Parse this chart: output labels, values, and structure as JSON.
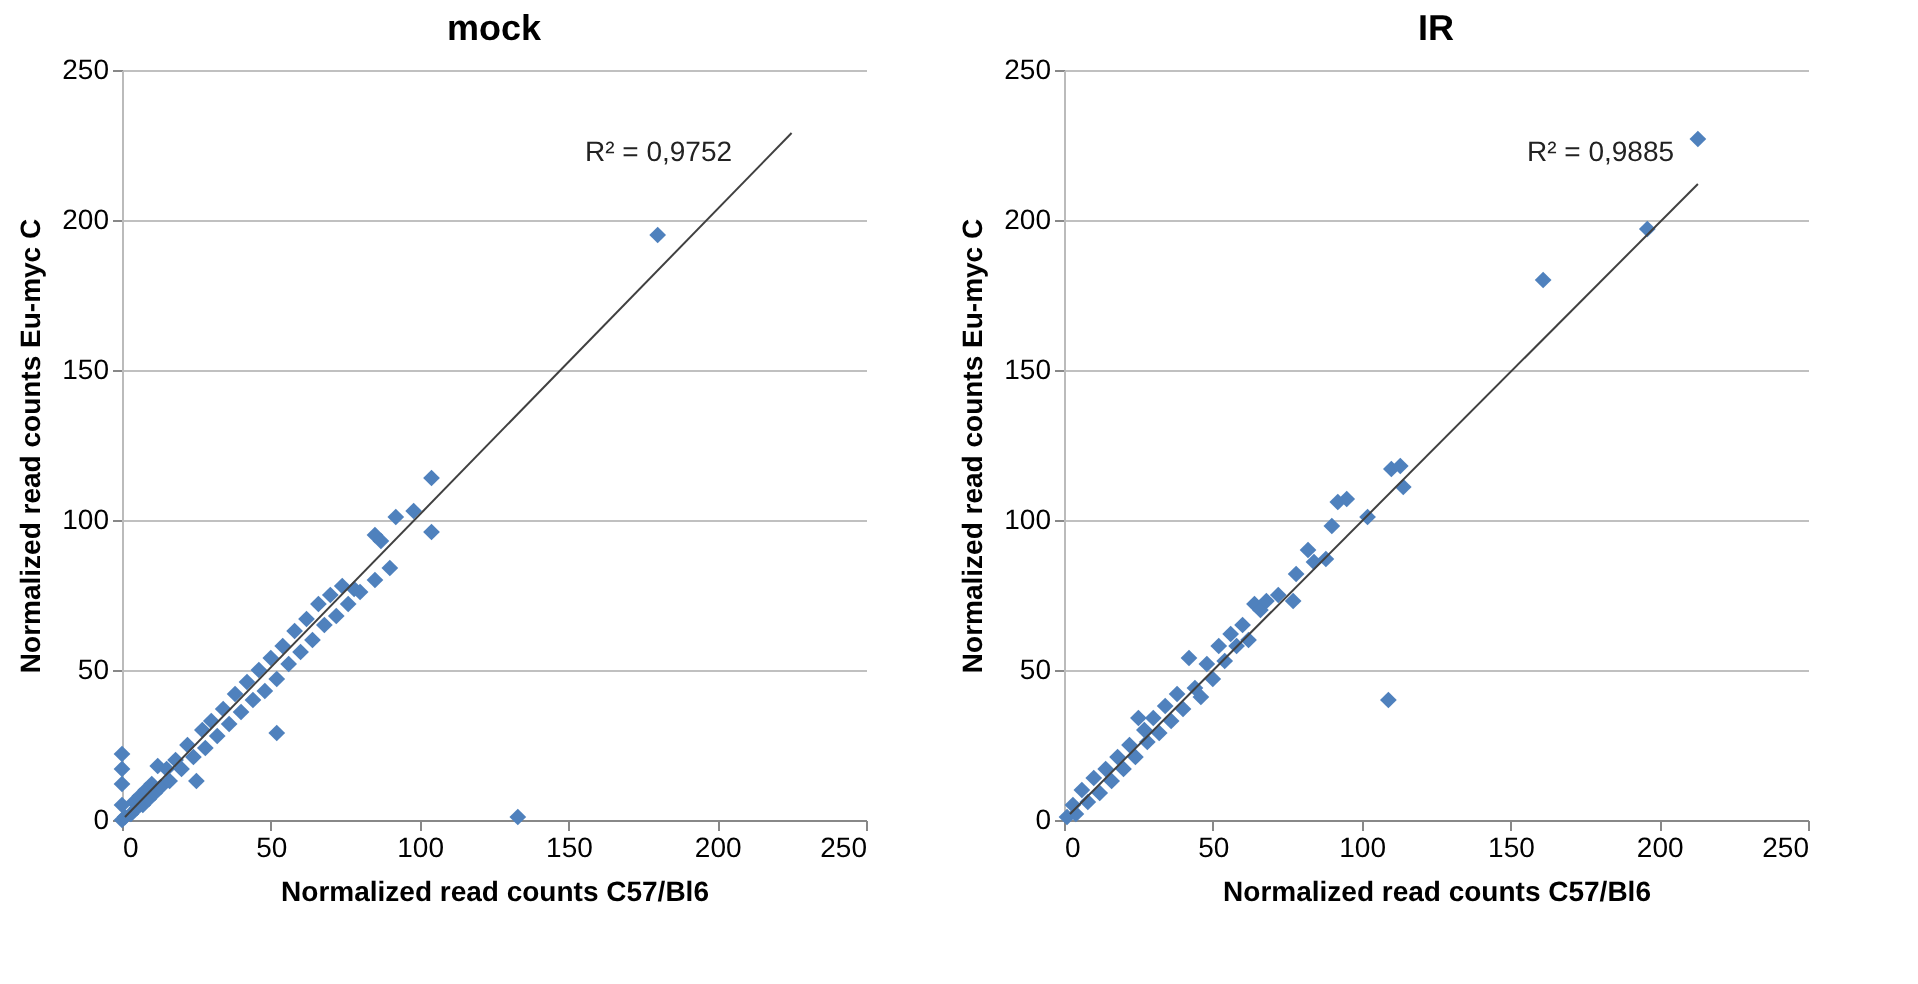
{
  "chart_data": [
    {
      "type": "scatter",
      "title": "mock",
      "xlabel": "Normalized read counts C57/Bl6",
      "ylabel": "Normalized read counts Eu-myc C",
      "xlim": [
        0,
        250
      ],
      "ylim": [
        0,
        250
      ],
      "xticks": [
        0,
        50,
        100,
        150,
        200,
        250
      ],
      "yticks": [
        0,
        50,
        100,
        150,
        200,
        250
      ],
      "grid": "y",
      "annotations": [
        "R² = 0,9752"
      ],
      "series": [
        {
          "marker": "diamond",
          "color": "#4f81bd",
          "x": [
            0,
            0,
            0,
            0,
            0,
            1,
            3,
            4,
            5,
            6,
            7,
            8,
            9,
            10,
            11,
            12,
            13,
            15,
            16,
            18,
            20,
            22,
            24,
            25,
            27,
            28,
            30,
            32,
            34,
            36,
            38,
            40,
            42,
            44,
            46,
            48,
            50,
            52,
            52,
            54,
            56,
            58,
            60,
            62,
            64,
            66,
            68,
            70,
            72,
            74,
            76,
            78,
            80,
            85,
            85,
            87,
            90,
            92,
            98,
            104,
            104,
            133,
            180
          ],
          "values": [
            0,
            5,
            12,
            17,
            22,
            1,
            2,
            6,
            4,
            8,
            5,
            10,
            7,
            12,
            9,
            18,
            11,
            17,
            13,
            20,
            17,
            25,
            21,
            13,
            30,
            24,
            33,
            28,
            37,
            32,
            42,
            36,
            46,
            40,
            50,
            43,
            54,
            47,
            29,
            58,
            52,
            63,
            56,
            67,
            60,
            72,
            65,
            75,
            68,
            78,
            72,
            77,
            76,
            80,
            95,
            93,
            84,
            101,
            103,
            114,
            96,
            1,
            195
          ]
        },
        {
          "type": "line",
          "line_style": "solid",
          "color": "#404040",
          "x": [
            1,
            225
          ],
          "values": [
            1,
            229
          ]
        }
      ]
    },
    {
      "type": "scatter",
      "title": "IR",
      "xlabel": "Normalized read counts C57/Bl6",
      "ylabel": "Normalized read counts Eu-myc C",
      "xlim": [
        0,
        250
      ],
      "ylim": [
        0,
        250
      ],
      "xticks": [
        0,
        50,
        100,
        150,
        200,
        250
      ],
      "yticks": [
        0,
        50,
        100,
        150,
        200,
        250
      ],
      "grid": "y",
      "annotations": [
        "R² = 0,9885"
      ],
      "series": [
        {
          "marker": "diamond",
          "color": "#4f81bd",
          "x": [
            1,
            3,
            4,
            6,
            8,
            10,
            12,
            14,
            16,
            18,
            20,
            22,
            24,
            25,
            27,
            28,
            30,
            32,
            34,
            36,
            38,
            40,
            42,
            44,
            46,
            48,
            50,
            52,
            54,
            56,
            58,
            60,
            62,
            64,
            66,
            68,
            72,
            77,
            78,
            82,
            84,
            88,
            90,
            92,
            95,
            102,
            110,
            113,
            114,
            109,
            161,
            196,
            213
          ],
          "values": [
            1,
            5,
            2,
            10,
            6,
            14,
            9,
            17,
            13,
            21,
            17,
            25,
            21,
            34,
            30,
            26,
            34,
            29,
            38,
            33,
            42,
            37,
            54,
            44,
            41,
            52,
            47,
            58,
            53,
            62,
            58,
            65,
            60,
            72,
            70,
            73,
            75,
            73,
            82,
            90,
            86,
            87,
            98,
            106,
            107,
            101,
            117,
            118,
            111,
            40,
            180,
            197,
            227
          ]
        },
        {
          "type": "line",
          "line_style": "solid",
          "color": "#404040",
          "x": [
            2,
            213
          ],
          "values": [
            2,
            212
          ]
        }
      ]
    }
  ]
}
